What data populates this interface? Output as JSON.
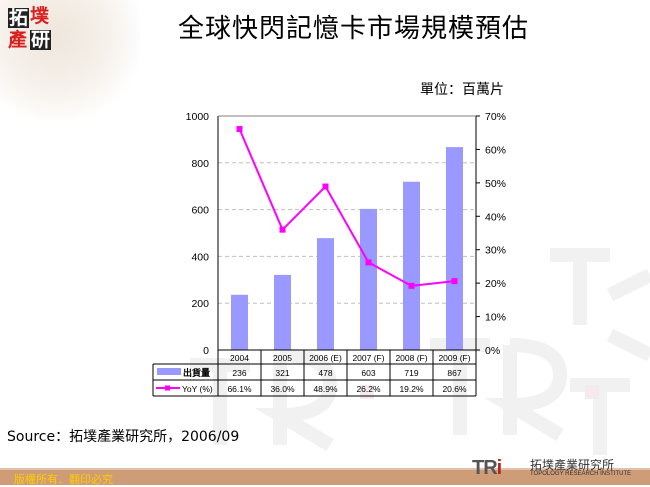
{
  "header": {
    "logo_chars": [
      "拓",
      "墣",
      "產",
      "研"
    ],
    "title": "全球快閃記憶卡市場規模預估",
    "unit_label": "單位：百萬片"
  },
  "source": "Source：拓墣產業研究所，2006/09",
  "footer": {
    "copyright": "版權所有．翻印必究",
    "brand_mark": "TRi",
    "brand_cn": "拓墣產業研究所",
    "brand_en": "TOPOLOGY RESEARCH INSTITUTE"
  },
  "colors": {
    "bar": "#9999ff",
    "line": "#ff00ff",
    "grid": "#c0c0c0",
    "footer_bar": "#cf9c78",
    "copyright_text": "#ffcc00"
  },
  "chart_data": {
    "type": "bar+line",
    "title": "全球快閃記憶卡市場規模預估",
    "unit": "單位：百萬片",
    "categories": [
      "2004",
      "2005",
      "2006 (E)",
      "2007 (F)",
      "2008 (F)",
      "2009 (F)"
    ],
    "series": [
      {
        "name": "出貨量",
        "type": "bar",
        "axis": "left",
        "values": [
          236,
          321,
          478,
          603,
          719,
          867
        ],
        "labels": [
          "236",
          "321",
          "478",
          "603",
          "719",
          "867"
        ]
      },
      {
        "name": "YoY (%)",
        "type": "line",
        "axis": "right",
        "values": [
          66.1,
          36.0,
          48.9,
          26.2,
          19.2,
          20.6
        ],
        "labels": [
          "66.1%",
          "36.0%",
          "48.9%",
          "26.2%",
          "19.2%",
          "20.6%"
        ]
      }
    ],
    "left_axis": {
      "min": 0,
      "max": 1000,
      "ticks": [
        "0",
        "200",
        "400",
        "600",
        "800",
        "1000"
      ]
    },
    "right_axis": {
      "min": 0,
      "max": 70,
      "ticks": [
        "0%",
        "10%",
        "20%",
        "30%",
        "40%",
        "50%",
        "60%",
        "70%"
      ]
    },
    "grid": true,
    "legend_position": "data-table"
  }
}
